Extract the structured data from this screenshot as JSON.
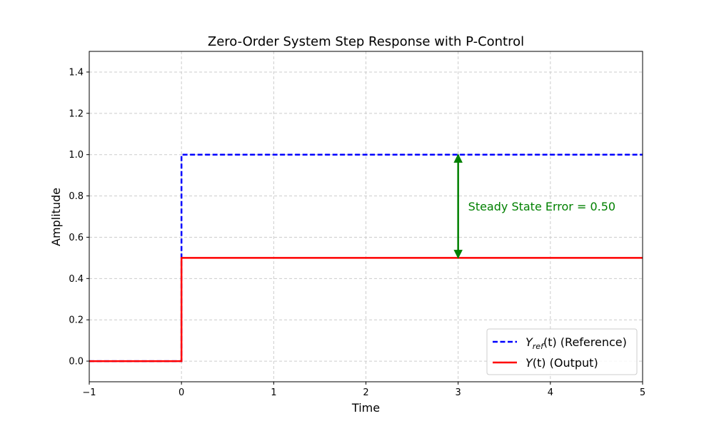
{
  "chart_data": {
    "type": "line",
    "title": "Zero-Order System Step Response with P-Control",
    "xlabel": "Time",
    "ylabel": "Amplitude",
    "xlim": [
      -1,
      5
    ],
    "ylim": [
      -0.1,
      1.5
    ],
    "xticks": [
      -1,
      0,
      1,
      2,
      3,
      4,
      5
    ],
    "xtick_labels": [
      "−1",
      "0",
      "1",
      "2",
      "3",
      "4",
      "5"
    ],
    "yticks": [
      0.0,
      0.2,
      0.4,
      0.6,
      0.8,
      1.0,
      1.2,
      1.4
    ],
    "ytick_labels": [
      "0.0",
      "0.2",
      "0.4",
      "0.6",
      "0.8",
      "1.0",
      "1.2",
      "1.4"
    ],
    "grid": true,
    "legend_position": "bottom-right",
    "series": [
      {
        "name": "Y_ref(t) (Reference)",
        "legend_main": "Y",
        "legend_sub": "ref",
        "legend_rest": "(t) (Reference)",
        "color": "#0000ff",
        "style": "dashed",
        "points": [
          [
            -1,
            0
          ],
          [
            0,
            0
          ],
          [
            0,
            1
          ],
          [
            5,
            1
          ]
        ]
      },
      {
        "name": "Y(t) (Output)",
        "legend_main": "Y",
        "legend_sub": "",
        "legend_rest": "(t) (Output)",
        "color": "#ff0000",
        "style": "solid",
        "points": [
          [
            -1,
            0
          ],
          [
            0,
            0
          ],
          [
            0,
            0.5
          ],
          [
            5,
            0.5
          ]
        ]
      }
    ],
    "annotation": {
      "text": "Steady State Error = 0.50",
      "color": "#008000",
      "x": 3,
      "y_from": 0.5,
      "y_to": 1.0,
      "text_y": 0.75
    }
  }
}
